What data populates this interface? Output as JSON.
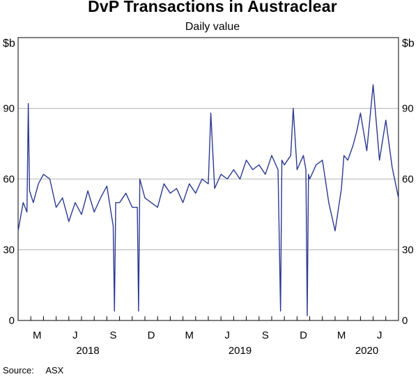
{
  "chart_data": {
    "type": "line",
    "title": "DvP Transactions in Austraclear",
    "subtitle": "Daily value",
    "ylabel_left": "$b",
    "ylabel_right": "$b",
    "ylim": [
      0,
      120
    ],
    "yticks": [
      0,
      30,
      60,
      90
    ],
    "grid": true,
    "xlim_months": [
      0,
      30
    ],
    "x_ticks": [
      {
        "label": "M",
        "month": 2
      },
      {
        "label": "J",
        "month": 5
      },
      {
        "label": "S",
        "month": 8
      },
      {
        "label": "D",
        "month": 11
      },
      {
        "label": "M",
        "month": 14
      },
      {
        "label": "J",
        "month": 17
      },
      {
        "label": "S",
        "month": 20
      },
      {
        "label": "D",
        "month": 23
      },
      {
        "label": "M",
        "month": 26
      },
      {
        "label": "J",
        "month": 29
      }
    ],
    "year_labels": [
      {
        "label": "2018",
        "month": 6
      },
      {
        "label": "2019",
        "month": 18
      },
      {
        "label": "2020",
        "month": 28
      }
    ],
    "series": [
      {
        "name": "Daily value",
        "color": "#2b3990",
        "x_month": [
          0.0,
          0.4,
          0.7,
          0.8,
          0.9,
          1.2,
          1.6,
          2.0,
          2.5,
          3.0,
          3.5,
          4.0,
          4.5,
          5.0,
          5.5,
          6.0,
          6.5,
          7.0,
          7.5,
          7.6,
          7.7,
          8.0,
          8.5,
          9.0,
          9.4,
          9.5,
          9.6,
          10.0,
          10.5,
          11.0,
          11.5,
          12.0,
          12.5,
          13.0,
          13.5,
          14.0,
          14.5,
          15.0,
          15.2,
          15.5,
          16.0,
          16.5,
          17.0,
          17.5,
          18.0,
          18.5,
          19.0,
          19.5,
          20.0,
          20.5,
          20.7,
          20.8,
          21.0,
          21.5,
          21.7,
          22.0,
          22.5,
          22.7,
          22.8,
          22.9,
          23.0,
          23.5,
          24.0,
          24.5,
          25.0,
          25.5,
          25.7,
          26.0,
          26.4,
          26.7,
          27.0,
          27.5,
          28.0,
          28.5,
          29.0,
          29.5,
          30.0
        ],
        "values": [
          38,
          50,
          46,
          92,
          55,
          50,
          58,
          62,
          60,
          48,
          52,
          42,
          50,
          45,
          55,
          46,
          52,
          57,
          40,
          4,
          50,
          50,
          54,
          48,
          48,
          4,
          60,
          52,
          50,
          48,
          58,
          54,
          56,
          50,
          58,
          54,
          60,
          58,
          88,
          56,
          62,
          60,
          64,
          60,
          68,
          64,
          66,
          62,
          70,
          64,
          4,
          68,
          66,
          70,
          90,
          64,
          70,
          64,
          2,
          62,
          60,
          66,
          68,
          50,
          38,
          56,
          70,
          68,
          74,
          80,
          88,
          72,
          100,
          68,
          85,
          65,
          52
        ]
      }
    ],
    "source_label": "Source:",
    "source_value": "ASX"
  }
}
